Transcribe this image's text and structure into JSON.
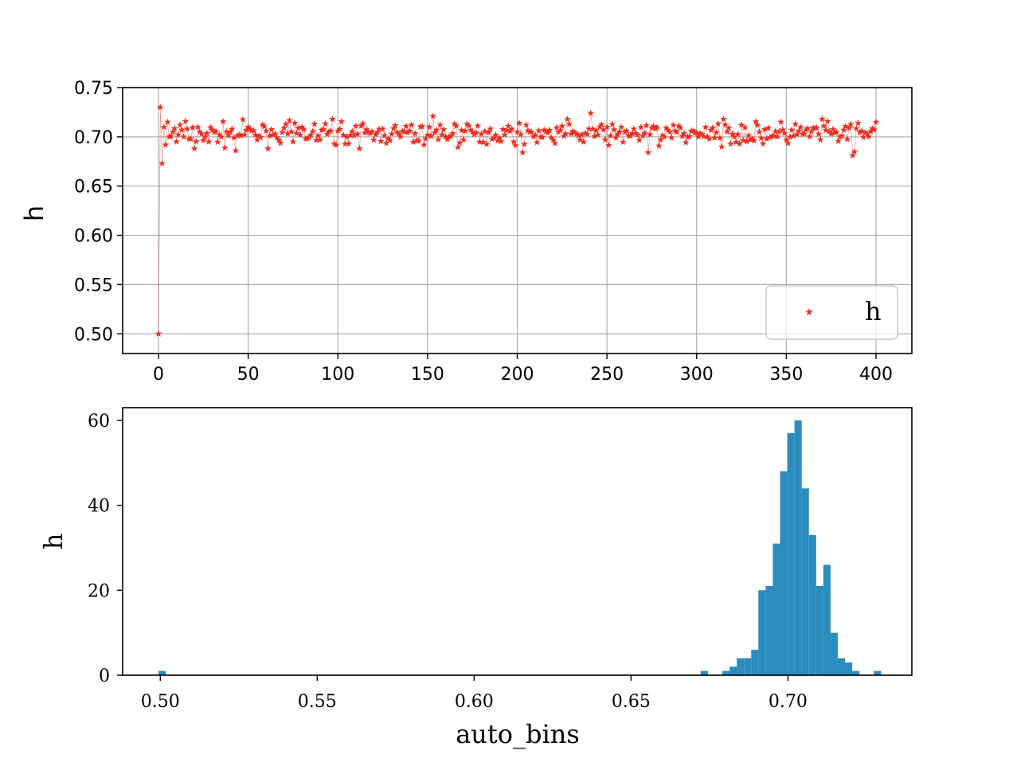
{
  "chart_data": [
    {
      "type": "scatter",
      "xlabel": "",
      "ylabel": "h",
      "xlim": [
        -20,
        420
      ],
      "ylim": [
        0.48,
        0.75
      ],
      "xticks": [
        "0",
        "50",
        "100",
        "150",
        "200",
        "250",
        "300",
        "350",
        "400"
      ],
      "yticks": [
        "0.50",
        "0.55",
        "0.60",
        "0.65",
        "0.70",
        "0.75"
      ],
      "grid": true,
      "legend": {
        "position": "lower right",
        "entries": [
          "h"
        ]
      },
      "series": [
        {
          "name": "h",
          "color": "#ee2f22",
          "marker": "star",
          "n_points": 401,
          "x": [
            0,
            1,
            2,
            3,
            4,
            5,
            6,
            8,
            10,
            12,
            14,
            16,
            18,
            20,
            22,
            24,
            26,
            28,
            30,
            35,
            40,
            43,
            45,
            50,
            55,
            60,
            65,
            70,
            75,
            80,
            85,
            90,
            95,
            97,
            100,
            105,
            110,
            112,
            115,
            120,
            125,
            130,
            135,
            140,
            145,
            150,
            153,
            155,
            160,
            165,
            170,
            175,
            180,
            185,
            190,
            195,
            200,
            203,
            205,
            210,
            215,
            220,
            225,
            228,
            230,
            235,
            240,
            241,
            245,
            250,
            255,
            260,
            265,
            270,
            273,
            275,
            280,
            285,
            290,
            295,
            300,
            305,
            310,
            314,
            315,
            320,
            325,
            330,
            335,
            340,
            345,
            350,
            355,
            360,
            365,
            370,
            375,
            380,
            385,
            387,
            388,
            390,
            395,
            400
          ],
          "y": [
            0.5,
            0.73,
            0.673,
            0.71,
            0.692,
            0.715,
            0.7,
            0.705,
            0.695,
            0.712,
            0.7,
            0.708,
            0.698,
            0.688,
            0.71,
            0.703,
            0.7,
            0.695,
            0.707,
            0.7,
            0.705,
            0.686,
            0.702,
            0.71,
            0.697,
            0.706,
            0.703,
            0.709,
            0.695,
            0.71,
            0.702,
            0.697,
            0.705,
            0.718,
            0.706,
            0.7,
            0.711,
            0.688,
            0.704,
            0.697,
            0.708,
            0.703,
            0.7,
            0.706,
            0.696,
            0.702,
            0.721,
            0.707,
            0.7,
            0.713,
            0.697,
            0.705,
            0.703,
            0.708,
            0.699,
            0.711,
            0.705,
            0.684,
            0.712,
            0.702,
            0.707,
            0.697,
            0.711,
            0.718,
            0.703,
            0.697,
            0.708,
            0.724,
            0.702,
            0.71,
            0.699,
            0.705,
            0.708,
            0.701,
            0.684,
            0.709,
            0.697,
            0.705,
            0.711,
            0.7,
            0.704,
            0.71,
            0.699,
            0.69,
            0.718,
            0.703,
            0.712,
            0.697,
            0.705,
            0.709,
            0.7,
            0.697,
            0.713,
            0.703,
            0.709,
            0.718,
            0.703,
            0.7,
            0.709,
            0.681,
            0.685,
            0.714,
            0.703,
            0.715
          ]
        }
      ]
    },
    {
      "type": "bar",
      "subtype": "histogram",
      "xlabel": "auto_bins",
      "ylabel": "h",
      "xlim": [
        0.488,
        0.7395
      ],
      "ylim": [
        0,
        63
      ],
      "xticks": [
        "0.50",
        "0.55",
        "0.60",
        "0.65",
        "0.70"
      ],
      "yticks": [
        "0",
        "20",
        "40",
        "60"
      ],
      "color": "#2b8cbe",
      "bin_width": 0.0023,
      "bin_starts": [
        0.4994,
        0.6722,
        0.6791,
        0.6814,
        0.6837,
        0.686,
        0.6883,
        0.6906,
        0.6929,
        0.6952,
        0.6975,
        0.6998,
        0.7021,
        0.7044,
        0.7067,
        0.709,
        0.7113,
        0.7136,
        0.7159,
        0.7182,
        0.7205,
        0.7274
      ],
      "values": [
        1,
        1,
        1,
        2,
        4,
        4,
        6,
        20,
        21,
        31,
        48,
        57,
        60,
        44,
        33,
        21,
        26,
        10,
        4,
        3,
        1,
        1
      ]
    }
  ]
}
